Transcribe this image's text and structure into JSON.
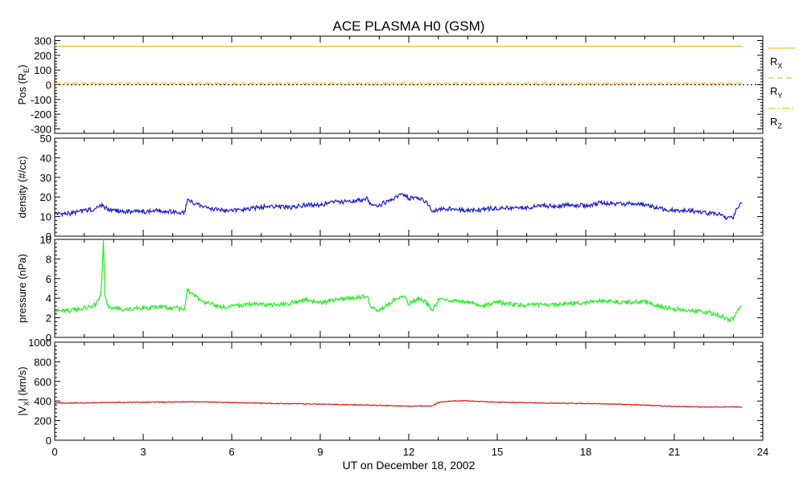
{
  "title": "ACE PLASMA H0 (GSM)",
  "xlabel": "UT on December 18, 2002",
  "x_ticks": [
    "0",
    "3",
    "6",
    "9",
    "12",
    "15",
    "18",
    "21",
    "24"
  ],
  "colors": {
    "rx": "#f0b000",
    "ry": "#f0b000",
    "rz": "#f0b000",
    "density": "#1a1acc",
    "pressure": "#22ee22",
    "vx": "#dd1111",
    "frame": "#000000"
  },
  "chart_data": [
    {
      "type": "line",
      "ylabel": "Pos (R",
      "ylabel_sub": "E",
      "ylabel_close": ")",
      "ylim": [
        -330,
        330
      ],
      "xlim": [
        0,
        24
      ],
      "y_ticks": [
        "-300",
        "-200",
        "-100",
        "0",
        "100",
        "200",
        "300"
      ],
      "y_tick_values": [
        -300,
        -200,
        -100,
        0,
        100,
        200,
        300
      ],
      "legend": [
        {
          "name": "R",
          "sub": "X",
          "style": "solid"
        },
        {
          "name": "R",
          "sub": "Y",
          "style": "dashed"
        },
        {
          "name": "R",
          "sub": "Z",
          "style": "dashdot"
        }
      ],
      "series": [
        {
          "name": "RX",
          "x": [
            0,
            23.3
          ],
          "values": [
            262,
            262
          ],
          "style": "solid"
        },
        {
          "name": "RY",
          "x": [
            0,
            23.3
          ],
          "values": [
            12,
            12
          ],
          "style": "dashed"
        },
        {
          "name": "RZ",
          "x": [
            0,
            23.3
          ],
          "values": [
            3,
            3
          ],
          "style": "dashdot"
        }
      ]
    },
    {
      "type": "line",
      "ylabel": "density (#/cc)",
      "ylim": [
        0,
        50
      ],
      "xlim": [
        0,
        24
      ],
      "y_ticks": [
        "0",
        "10",
        "20",
        "30",
        "40",
        "50"
      ],
      "y_tick_values": [
        0,
        10,
        20,
        30,
        40,
        50
      ],
      "series": [
        {
          "name": "density",
          "x": [
            0,
            0.5,
            1.0,
            1.4,
            1.6,
            1.8,
            2.0,
            2.5,
            3.0,
            3.5,
            4.0,
            4.4,
            4.5,
            5.0,
            5.5,
            6.0,
            6.5,
            7.0,
            7.5,
            8.0,
            8.5,
            9.0,
            9.5,
            10.0,
            10.5,
            10.6,
            10.7,
            11.0,
            11.5,
            11.8,
            12.0,
            12.3,
            12.6,
            12.8,
            13.0,
            13.5,
            14.0,
            14.5,
            15.0,
            15.5,
            16.0,
            16.5,
            17.0,
            17.5,
            18.0,
            18.5,
            19.0,
            19.5,
            20.0,
            20.5,
            21.0,
            21.5,
            22.0,
            22.5,
            22.8,
            23.0,
            23.1,
            23.3
          ],
          "values": [
            11.5,
            11.5,
            13,
            14,
            16,
            13.5,
            13,
            12.5,
            12.5,
            13,
            12.5,
            12,
            18.5,
            15,
            13.5,
            13,
            13.5,
            15,
            15,
            14.5,
            16,
            16,
            17.5,
            17.5,
            19,
            19.5,
            16,
            16,
            19,
            22,
            19,
            20,
            17,
            13,
            13.5,
            14,
            13,
            13.5,
            14.5,
            14.5,
            14.5,
            15.5,
            15.5,
            16,
            15.5,
            17,
            16.5,
            16.5,
            16,
            14,
            13,
            13,
            12,
            11.5,
            9,
            9.5,
            14,
            17
          ]
        }
      ]
    },
    {
      "type": "line",
      "ylabel": "pressure (nPa)",
      "ylim": [
        0,
        10
      ],
      "xlim": [
        0,
        24
      ],
      "y_ticks": [
        "0",
        "2",
        "4",
        "6",
        "8",
        "10"
      ],
      "y_tick_values": [
        0,
        2,
        4,
        6,
        8,
        10
      ],
      "series": [
        {
          "name": "pressure",
          "x": [
            0,
            0.5,
            1.0,
            1.4,
            1.55,
            1.6,
            1.65,
            1.7,
            1.8,
            2.0,
            2.5,
            3.0,
            3.5,
            4.0,
            4.4,
            4.5,
            5.0,
            5.5,
            6.0,
            6.5,
            7.0,
            7.5,
            8.0,
            8.5,
            9.0,
            9.5,
            10.0,
            10.5,
            10.6,
            10.7,
            11.0,
            11.5,
            11.8,
            12.0,
            12.3,
            12.6,
            12.8,
            13.0,
            13.5,
            14.0,
            14.5,
            15.0,
            15.5,
            16.0,
            16.5,
            17.0,
            17.5,
            18.0,
            18.5,
            19.0,
            19.5,
            20.0,
            20.5,
            21.0,
            21.5,
            22.0,
            22.5,
            22.8,
            23.0,
            23.1,
            23.3
          ],
          "values": [
            2.7,
            2.7,
            3.0,
            3.3,
            4.2,
            6.0,
            10.0,
            4.5,
            3.2,
            2.9,
            2.9,
            3.0,
            3.1,
            3.0,
            2.9,
            4.8,
            3.7,
            3.2,
            3.1,
            3.4,
            3.4,
            3.3,
            3.5,
            3.8,
            3.5,
            3.8,
            4.0,
            4.2,
            4.3,
            3.0,
            2.8,
            3.8,
            4.3,
            3.4,
            4.0,
            3.5,
            2.8,
            3.8,
            3.8,
            3.6,
            3.2,
            3.6,
            3.4,
            3.3,
            3.3,
            3.3,
            3.5,
            3.5,
            3.8,
            3.6,
            3.6,
            3.6,
            3.2,
            2.9,
            2.8,
            2.6,
            2.3,
            1.9,
            1.8,
            2.6,
            3.2
          ]
        }
      ]
    },
    {
      "type": "line",
      "ylabel": "|V",
      "ylabel_sub": "X",
      "ylabel_close": "| (km/s)",
      "ylim": [
        0,
        1000
      ],
      "xlim": [
        0,
        24
      ],
      "y_ticks": [
        "0",
        "200",
        "400",
        "600",
        "800",
        "1000"
      ],
      "y_tick_values": [
        0,
        200,
        400,
        600,
        800,
        1000
      ],
      "series": [
        {
          "name": "vx",
          "x": [
            0,
            1,
            2,
            3,
            4,
            5,
            6,
            7,
            8,
            9,
            10,
            11,
            12,
            12.8,
            13.0,
            13.5,
            14.0,
            14.5,
            15.0,
            16.0,
            17.0,
            18.0,
            19.0,
            20.0,
            21.0,
            22.0,
            23.0,
            23.3
          ],
          "values": [
            380,
            380,
            385,
            388,
            390,
            392,
            384,
            378,
            372,
            368,
            362,
            355,
            348,
            350,
            385,
            402,
            400,
            395,
            388,
            382,
            378,
            374,
            368,
            358,
            345,
            338,
            340,
            338
          ]
        }
      ]
    }
  ]
}
